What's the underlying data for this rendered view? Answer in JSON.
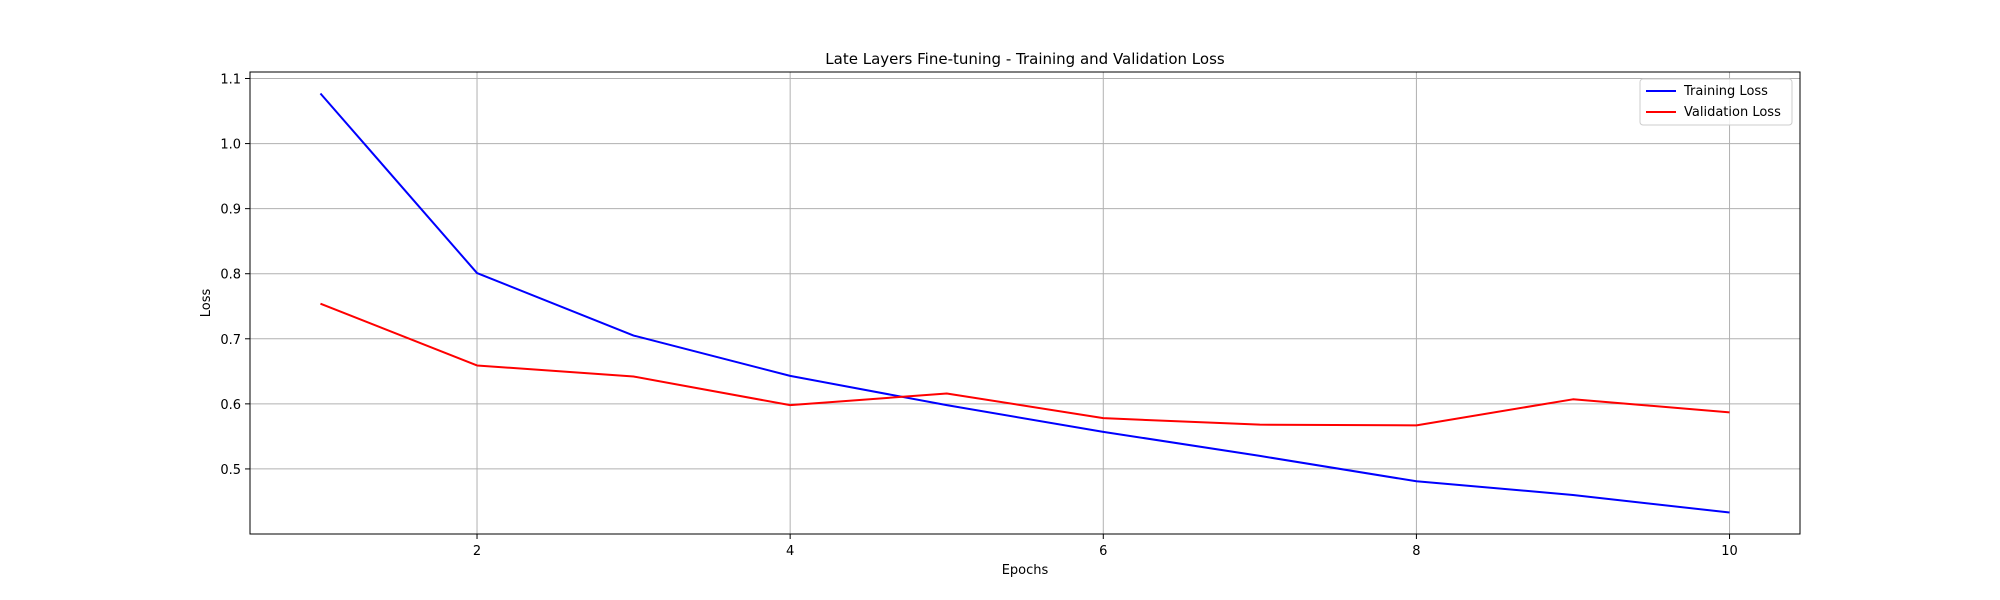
{
  "chart_data": {
    "type": "line",
    "title": "Late Layers Fine-tuning - Training and Validation Loss",
    "xlabel": "Epochs",
    "ylabel": "Loss",
    "x": [
      1,
      2,
      3,
      4,
      5,
      6,
      7,
      8,
      9,
      10
    ],
    "xlim": [
      0.55,
      10.45
    ],
    "ylim": [
      0.4,
      1.11
    ],
    "xticks": [
      2,
      4,
      6,
      8,
      10
    ],
    "yticks": [
      0.5,
      0.6,
      0.7,
      0.8,
      0.9,
      1.0,
      1.1
    ],
    "xtick_labels": [
      "2",
      "4",
      "6",
      "8",
      "10"
    ],
    "ytick_labels": [
      "0.5",
      "0.6",
      "0.7",
      "0.8",
      "0.9",
      "1.0",
      "1.1"
    ],
    "grid": true,
    "legend_position": "top-right",
    "series": [
      {
        "name": "Training Loss",
        "color": "#0000ff",
        "values": [
          1.077,
          0.801,
          0.705,
          0.643,
          0.598,
          0.557,
          0.52,
          0.481,
          0.46,
          0.433
        ]
      },
      {
        "name": "Validation Loss",
        "color": "#ff0000",
        "values": [
          0.754,
          0.659,
          0.642,
          0.598,
          0.616,
          0.578,
          0.568,
          0.567,
          0.607,
          0.587
        ]
      }
    ]
  }
}
